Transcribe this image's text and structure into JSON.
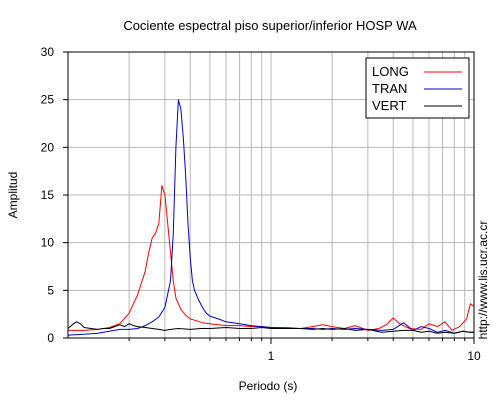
{
  "chart_data": {
    "type": "line",
    "title": "Cociente espectral piso superior/inferior  HOSP WA",
    "xlabel": "Periodo (s)",
    "ylabel": "Amplitud",
    "x_scale": "log",
    "xlim": [
      0.1,
      10
    ],
    "ylim": [
      0,
      30
    ],
    "x_tick_labels": [
      "1",
      "10"
    ],
    "y_ticks": [
      0,
      5,
      10,
      15,
      20,
      25,
      30
    ],
    "grid": true,
    "legend_position": "top-right",
    "side_note": "http://www.lis.ucr.ac.cr",
    "series": [
      {
        "name": "LONG",
        "color": "#ff0000",
        "points": [
          [
            0.1,
            0.8
          ],
          [
            0.12,
            0.8
          ],
          [
            0.14,
            0.9
          ],
          [
            0.16,
            1.1
          ],
          [
            0.18,
            1.5
          ],
          [
            0.2,
            2.6
          ],
          [
            0.22,
            4.5
          ],
          [
            0.24,
            7
          ],
          [
            0.25,
            9
          ],
          [
            0.26,
            10.5
          ],
          [
            0.27,
            11
          ],
          [
            0.28,
            12
          ],
          [
            0.29,
            16
          ],
          [
            0.3,
            15
          ],
          [
            0.31,
            12
          ],
          [
            0.32,
            9
          ],
          [
            0.33,
            6
          ],
          [
            0.34,
            4.2
          ],
          [
            0.36,
            3
          ],
          [
            0.38,
            2.4
          ],
          [
            0.4,
            2
          ],
          [
            0.43,
            1.8
          ],
          [
            0.46,
            1.6
          ],
          [
            0.5,
            1.5
          ],
          [
            0.55,
            1.4
          ],
          [
            0.6,
            1.3
          ],
          [
            0.7,
            1.3
          ],
          [
            0.8,
            1.2
          ],
          [
            0.9,
            1.2
          ],
          [
            1.0,
            1.1
          ],
          [
            1.2,
            1.1
          ],
          [
            1.4,
            1.0
          ],
          [
            1.6,
            1.2
          ],
          [
            1.8,
            1.4
          ],
          [
            2.0,
            1.2
          ],
          [
            2.3,
            1.0
          ],
          [
            2.6,
            1.3
          ],
          [
            3.0,
            0.8
          ],
          [
            3.4,
            1.0
          ],
          [
            3.7,
            1.4
          ],
          [
            4.0,
            2.1
          ],
          [
            4.3,
            1.5
          ],
          [
            4.8,
            1.0
          ],
          [
            5.5,
            0.9
          ],
          [
            6.0,
            1.5
          ],
          [
            6.6,
            1.2
          ],
          [
            7.2,
            1.7
          ],
          [
            7.8,
            0.8
          ],
          [
            8.5,
            1.2
          ],
          [
            9.2,
            2.0
          ],
          [
            9.6,
            3.6
          ],
          [
            10.0,
            3.3
          ]
        ]
      },
      {
        "name": "TRAN",
        "color": "#0000cc",
        "points": [
          [
            0.1,
            0.3
          ],
          [
            0.12,
            0.4
          ],
          [
            0.14,
            0.5
          ],
          [
            0.16,
            0.7
          ],
          [
            0.18,
            0.9
          ],
          [
            0.2,
            0.9
          ],
          [
            0.22,
            1.0
          ],
          [
            0.24,
            1.3
          ],
          [
            0.26,
            1.7
          ],
          [
            0.28,
            2.2
          ],
          [
            0.3,
            3.2
          ],
          [
            0.32,
            6
          ],
          [
            0.33,
            11
          ],
          [
            0.34,
            20
          ],
          [
            0.35,
            25
          ],
          [
            0.36,
            24
          ],
          [
            0.37,
            21
          ],
          [
            0.38,
            17
          ],
          [
            0.39,
            12
          ],
          [
            0.4,
            8.5
          ],
          [
            0.41,
            6
          ],
          [
            0.42,
            5
          ],
          [
            0.44,
            4
          ],
          [
            0.46,
            3.2
          ],
          [
            0.48,
            2.6
          ],
          [
            0.5,
            2.3
          ],
          [
            0.55,
            2.0
          ],
          [
            0.6,
            1.7
          ],
          [
            0.7,
            1.5
          ],
          [
            0.8,
            1.3
          ],
          [
            0.9,
            1.2
          ],
          [
            1.0,
            1.1
          ],
          [
            1.2,
            1.0
          ],
          [
            1.4,
            1.0
          ],
          [
            1.6,
            1.0
          ],
          [
            1.8,
            0.9
          ],
          [
            2.0,
            1.0
          ],
          [
            2.3,
            0.9
          ],
          [
            2.6,
            1.0
          ],
          [
            3.0,
            0.9
          ],
          [
            3.5,
            0.8
          ],
          [
            4.0,
            0.9
          ],
          [
            4.5,
            1.6
          ],
          [
            5.0,
            0.8
          ],
          [
            5.5,
            1.2
          ],
          [
            6.0,
            1.0
          ],
          [
            6.6,
            0.6
          ],
          [
            7.2,
            0.8
          ],
          [
            8.0,
            0.5
          ],
          [
            8.8,
            0.7
          ],
          [
            9.5,
            0.6
          ],
          [
            10.0,
            0.6
          ]
        ]
      },
      {
        "name": "VERT",
        "color": "#000000",
        "points": [
          [
            0.1,
            1.0
          ],
          [
            0.105,
            1.4
          ],
          [
            0.11,
            1.7
          ],
          [
            0.115,
            1.5
          ],
          [
            0.12,
            1.1
          ],
          [
            0.13,
            1.0
          ],
          [
            0.14,
            0.9
          ],
          [
            0.15,
            1.0
          ],
          [
            0.16,
            1.0
          ],
          [
            0.17,
            1.2
          ],
          [
            0.18,
            1.4
          ],
          [
            0.19,
            1.2
          ],
          [
            0.2,
            1.5
          ],
          [
            0.21,
            1.3
          ],
          [
            0.22,
            1.2
          ],
          [
            0.24,
            1.1
          ],
          [
            0.26,
            1.0
          ],
          [
            0.28,
            0.9
          ],
          [
            0.3,
            0.8
          ],
          [
            0.32,
            0.9
          ],
          [
            0.35,
            1.0
          ],
          [
            0.4,
            0.9
          ],
          [
            0.45,
            1.0
          ],
          [
            0.5,
            1.0
          ],
          [
            0.6,
            1.1
          ],
          [
            0.7,
            1.0
          ],
          [
            0.8,
            1.0
          ],
          [
            0.9,
            1.1
          ],
          [
            1.0,
            1.0
          ],
          [
            1.2,
            1.0
          ],
          [
            1.4,
            1.0
          ],
          [
            1.6,
            0.9
          ],
          [
            1.8,
            1.0
          ],
          [
            2.0,
            0.9
          ],
          [
            2.3,
            1.0
          ],
          [
            2.6,
            0.8
          ],
          [
            3.0,
            0.9
          ],
          [
            3.5,
            0.6
          ],
          [
            4.0,
            0.7
          ],
          [
            4.5,
            0.8
          ],
          [
            5.0,
            0.8
          ],
          [
            5.5,
            0.6
          ],
          [
            6.0,
            0.7
          ],
          [
            6.6,
            0.5
          ],
          [
            7.2,
            0.6
          ],
          [
            8.0,
            0.5
          ],
          [
            8.8,
            0.7
          ],
          [
            9.5,
            0.6
          ],
          [
            10.0,
            0.6
          ]
        ]
      }
    ]
  }
}
